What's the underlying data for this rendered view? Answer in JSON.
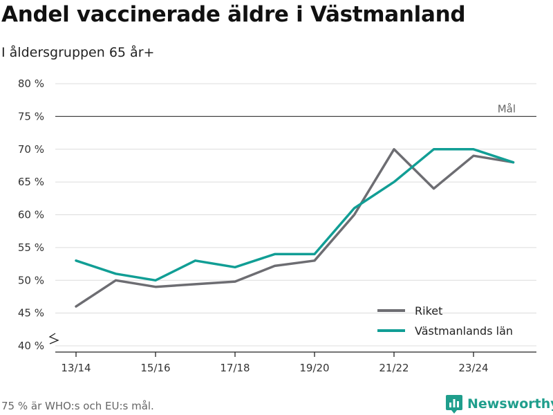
{
  "title": "Andel vaccinerade äldre i Västmanland",
  "subtitle": "I åldersgruppen 65 år+",
  "footnote": "75 % är WHO:s och EU:s mål.",
  "brand": {
    "name": "Newsworthy",
    "icon": "newsworthy-logo-icon",
    "color": "#1f9e8c"
  },
  "chart_data": {
    "type": "line",
    "x": [
      "13/14",
      "14/15",
      "15/16",
      "16/17",
      "17/18",
      "18/19",
      "19/20",
      "20/21",
      "21/22",
      "22/23",
      "23/24",
      "24/25"
    ],
    "x_tick_labels": [
      "13/14",
      "15/16",
      "17/18",
      "19/20",
      "21/22",
      "23/24"
    ],
    "y_tick_labels": [
      "40 %",
      "45 %",
      "50 %",
      "55 %",
      "60 %",
      "65 %",
      "70 %",
      "75 %",
      "80 %"
    ],
    "ylim": [
      40,
      80
    ],
    "y_ticks": [
      40,
      45,
      50,
      55,
      60,
      65,
      70,
      75,
      80
    ],
    "series": [
      {
        "name": "Riket",
        "color": "#6d6d72",
        "values": [
          46,
          50,
          49,
          49.4,
          49.8,
          52.2,
          53,
          60,
          70,
          64,
          69,
          68
        ]
      },
      {
        "name": "Västmanlands län",
        "color": "#119e95",
        "values": [
          53,
          51,
          50,
          53,
          52,
          54,
          54,
          61,
          65,
          70,
          70,
          68
        ]
      }
    ],
    "reference_line": {
      "value": 75,
      "label": "Mål",
      "color": "#444444"
    },
    "grid": true,
    "axis_break": true,
    "legend_position": "bottom-right"
  }
}
